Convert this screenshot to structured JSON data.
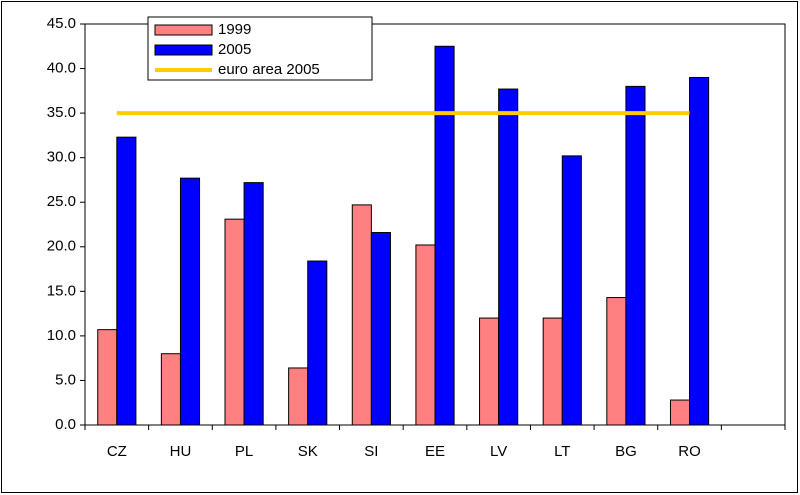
{
  "chart_data": {
    "type": "bar",
    "categories": [
      "CZ",
      "HU",
      "PL",
      "SK",
      "SI",
      "EE",
      "LV",
      "LT",
      "BG",
      "RO",
      null
    ],
    "series": [
      {
        "name": "1999",
        "color": "#ff8080",
        "values": [
          10.7,
          8.0,
          23.1,
          6.4,
          24.7,
          20.2,
          12.0,
          12.0,
          14.3,
          2.8,
          null
        ]
      },
      {
        "name": "2005",
        "color": "#0000ff",
        "values": [
          32.3,
          27.7,
          27.2,
          18.4,
          21.6,
          42.5,
          37.7,
          30.2,
          38.0,
          39.0,
          null
        ]
      },
      {
        "name": "euro area 2005",
        "type": "line",
        "color": "#ffcc00",
        "values": [
          35,
          35,
          35,
          35,
          35,
          35,
          35,
          35,
          35,
          35,
          null
        ]
      }
    ],
    "ylim": [
      0,
      45
    ],
    "yticks": [
      {
        "value": 0,
        "label": "0.0"
      },
      {
        "value": 5,
        "label": "5.0"
      },
      {
        "value": 10,
        "label": "10.0"
      },
      {
        "value": 15,
        "label": "15.0"
      },
      {
        "value": 20,
        "label": "20.0"
      },
      {
        "value": 25,
        "label": "25.0"
      },
      {
        "value": 30,
        "label": "30.0"
      },
      {
        "value": 35,
        "label": "35.0"
      },
      {
        "value": 40,
        "label": "40.0"
      },
      {
        "value": 45,
        "label": "45.0"
      }
    ]
  }
}
